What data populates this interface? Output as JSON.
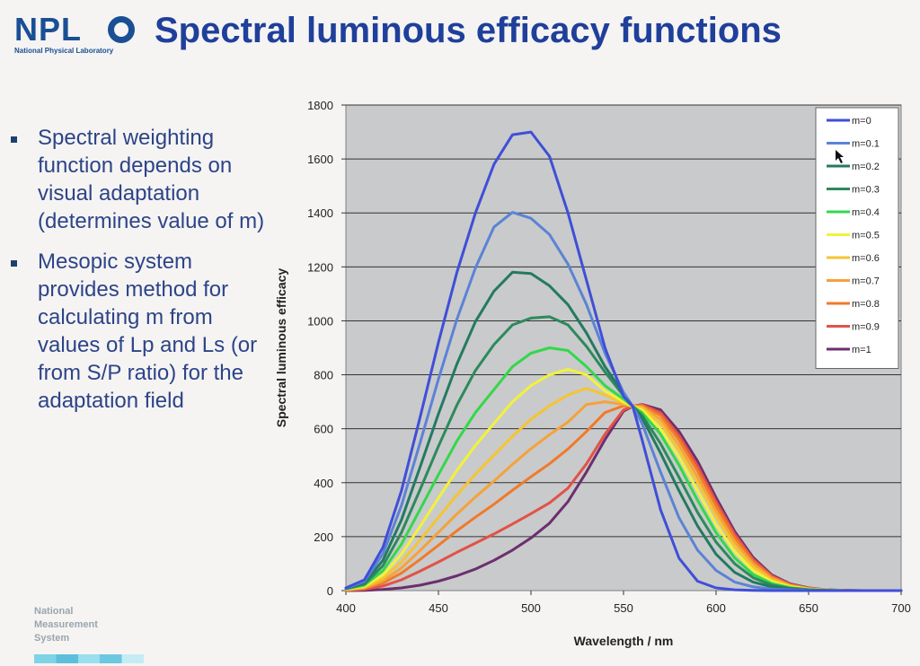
{
  "header": {
    "logo_text": "NPL",
    "logo_sub": "National Physical Laboratory",
    "title": "Spectral luminous efficacy functions"
  },
  "bullets": [
    "Spectral weighting function depends on visual adaptation (determines value of m)",
    "Mesopic system provides method for calculating m from values of Lp and Ls (or from S/P ratio) for the adaptation field"
  ],
  "footer": {
    "lines": [
      "National",
      "Measurement",
      "System"
    ]
  },
  "chart_data": {
    "type": "line",
    "xlabel": "Wavelength / nm",
    "ylabel": "Spectral luminous efficacy",
    "xlim": [
      400,
      700
    ],
    "ylim": [
      0,
      1800
    ],
    "xticks": [
      400,
      450,
      500,
      550,
      600,
      650,
      700
    ],
    "yticks": [
      0,
      200,
      400,
      600,
      800,
      1000,
      1200,
      1400,
      1600,
      1800
    ],
    "grid": "horizontal",
    "legend_position": "top-right",
    "background": "#c9cacb",
    "x": [
      400,
      410,
      420,
      430,
      440,
      450,
      460,
      470,
      480,
      490,
      500,
      510,
      520,
      530,
      540,
      550,
      555,
      560,
      570,
      580,
      590,
      600,
      610,
      620,
      630,
      640,
      650,
      660,
      670,
      680,
      690,
      700
    ],
    "series": [
      {
        "name": "m=0",
        "color": "#3f4fd8",
        "values": [
          10,
          40,
          160,
          370,
          640,
          920,
          1180,
          1400,
          1580,
          1690,
          1700,
          1610,
          1400,
          1150,
          900,
          720,
          683,
          560,
          300,
          120,
          35,
          10,
          3,
          1,
          0,
          0,
          0,
          0,
          0,
          0,
          0,
          0
        ]
      },
      {
        "name": "m=0.1",
        "color": "#5b83d6",
        "values": [
          9,
          34,
          136,
          315,
          546,
          784,
          1006,
          1196,
          1348,
          1402,
          1380,
          1320,
          1210,
          1060,
          880,
          735,
          683,
          620,
          440,
          270,
          150,
          75,
          32,
          14,
          6,
          3,
          1,
          0,
          0,
          0,
          0,
          0
        ]
      },
      {
        "name": "m=0.2",
        "color": "#237a62",
        "values": [
          8,
          29,
          112,
          262,
          456,
          655,
          840,
          997,
          1110,
          1180,
          1175,
          1130,
          1060,
          955,
          830,
          730,
          683,
          640,
          510,
          370,
          240,
          135,
          68,
          32,
          14,
          6,
          2,
          1,
          0,
          0,
          0,
          0
        ]
      },
      {
        "name": "m=0.3",
        "color": "#2c8a5c",
        "values": [
          7,
          24,
          92,
          215,
          373,
          535,
          688,
          816,
          912,
          985,
          1010,
          1015,
          985,
          905,
          810,
          722,
          683,
          650,
          545,
          420,
          290,
          180,
          100,
          48,
          21,
          9,
          3,
          1,
          0,
          0,
          0,
          0
        ]
      },
      {
        "name": "m=0.4",
        "color": "#33d84b",
        "values": [
          6,
          20,
          74,
          172,
          300,
          430,
          555,
          660,
          745,
          830,
          880,
          900,
          890,
          830,
          760,
          710,
          683,
          660,
          580,
          465,
          335,
          215,
          122,
          60,
          27,
          11,
          4,
          1,
          0,
          0,
          0,
          0
        ]
      },
      {
        "name": "m=0.5",
        "color": "#f2f23a",
        "values": [
          5,
          16,
          58,
          135,
          237,
          343,
          446,
          538,
          620,
          700,
          760,
          800,
          820,
          800,
          740,
          700,
          683,
          670,
          600,
          495,
          370,
          245,
          145,
          75,
          34,
          14,
          5,
          2,
          0,
          0,
          0,
          0
        ]
      },
      {
        "name": "m=0.6",
        "color": "#f5c433",
        "values": [
          4,
          13,
          46,
          106,
          186,
          271,
          355,
          432,
          502,
          572,
          635,
          685,
          725,
          750,
          725,
          695,
          683,
          677,
          620,
          520,
          400,
          275,
          165,
          88,
          40,
          17,
          6,
          2,
          0,
          0,
          0,
          0
        ]
      },
      {
        "name": "m=0.7",
        "color": "#f5a23a",
        "values": [
          3,
          10,
          36,
          84,
          148,
          216,
          284,
          347,
          406,
          468,
          526,
          578,
          625,
          690,
          700,
          690,
          683,
          682,
          635,
          540,
          422,
          295,
          182,
          98,
          46,
          19,
          7,
          2,
          0,
          0,
          0,
          0
        ]
      },
      {
        "name": "m=0.8",
        "color": "#f07a28",
        "values": [
          2,
          8,
          28,
          65,
          115,
          168,
          222,
          272,
          320,
          372,
          422,
          470,
          525,
          590,
          660,
          685,
          683,
          686,
          650,
          560,
          445,
          315,
          198,
          108,
          51,
          21,
          8,
          2,
          0,
          0,
          0,
          0
        ]
      },
      {
        "name": "m=0.9",
        "color": "#e25248",
        "values": [
          1,
          5,
          17,
          40,
          72,
          106,
          142,
          176,
          210,
          247,
          285,
          325,
          380,
          470,
          580,
          670,
          683,
          689,
          660,
          575,
          462,
          330,
          210,
          116,
          55,
          23,
          9,
          3,
          1,
          0,
          0,
          0
        ]
      },
      {
        "name": "m=1",
        "color": "#6b2f6e",
        "values": [
          0,
          1,
          4,
          10,
          20,
          35,
          55,
          80,
          112,
          150,
          195,
          250,
          330,
          440,
          560,
          665,
          683,
          690,
          670,
          590,
          480,
          345,
          220,
          123,
          59,
          25,
          10,
          3,
          1,
          0,
          0,
          0
        ]
      }
    ]
  }
}
